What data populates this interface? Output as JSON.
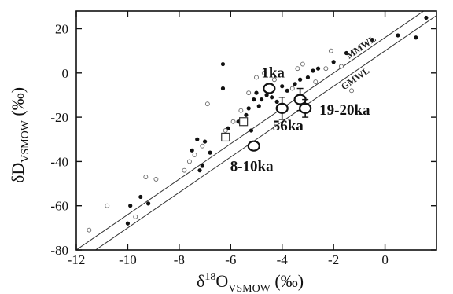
{
  "chart_data": {
    "type": "scatter",
    "xlim": [
      -12,
      2
    ],
    "ylim": [
      -80,
      28
    ],
    "x_ticks": [
      -12,
      -10,
      -8,
      -6,
      -4,
      -2,
      0
    ],
    "y_ticks": [
      -80,
      -60,
      -40,
      -20,
      0,
      20
    ],
    "xlabel": {
      "main": "δ",
      "sup": "18",
      "after": "O",
      "sub": "VSMOW",
      "unit": " (‰)"
    },
    "ylabel": {
      "main": "δD",
      "sub": "VSMOW",
      "unit": " (‰)"
    },
    "grid": false,
    "lines": [
      {
        "name": "MMWL",
        "slope": 8,
        "intercept": 16,
        "label": "MMWL"
      },
      {
        "name": "GMWL",
        "slope": 8,
        "intercept": 10,
        "label": "GMWL"
      }
    ],
    "series": [
      {
        "marker": "filled-dot",
        "points": [
          [
            -10,
            -68
          ],
          [
            -9.9,
            -60
          ],
          [
            -9.5,
            -56
          ],
          [
            -9.2,
            -59
          ],
          [
            -7.5,
            -35
          ],
          [
            -7.3,
            -30
          ],
          [
            -7.2,
            -44
          ],
          [
            -7.1,
            -42
          ],
          [
            -7.0,
            -31
          ],
          [
            -6.8,
            -36
          ],
          [
            -6.3,
            4
          ],
          [
            -6.3,
            -7
          ],
          [
            -6.1,
            -25
          ],
          [
            -5.7,
            -22
          ],
          [
            -5.5,
            -23
          ],
          [
            -5.4,
            -19
          ],
          [
            -5.3,
            -16
          ],
          [
            -5.2,
            -26
          ],
          [
            -5.1,
            -12
          ],
          [
            -5.0,
            -9
          ],
          [
            -4.9,
            -15
          ],
          [
            -4.8,
            -12
          ],
          [
            -4.6,
            -10
          ],
          [
            -4.4,
            -11
          ],
          [
            -4.2,
            -13
          ],
          [
            -4.0,
            -6
          ],
          [
            -3.8,
            -8
          ],
          [
            -3.5,
            -5
          ],
          [
            -3.3,
            -3
          ],
          [
            -3.0,
            -2
          ],
          [
            -2.8,
            1
          ],
          [
            -2.6,
            2
          ],
          [
            -2.0,
            5
          ],
          [
            -1.5,
            9
          ],
          [
            -0.5,
            15
          ],
          [
            0.5,
            17
          ],
          [
            1.2,
            16
          ],
          [
            1.6,
            25
          ]
        ]
      },
      {
        "marker": "open-dot",
        "points": [
          [
            -11.5,
            -71
          ],
          [
            -10.8,
            -60
          ],
          [
            -9.7,
            -65
          ],
          [
            -9.3,
            -47
          ],
          [
            -8.9,
            -48
          ],
          [
            -7.8,
            -44
          ],
          [
            -7.6,
            -40
          ],
          [
            -7.4,
            -37
          ],
          [
            -7.1,
            -33
          ],
          [
            -6.9,
            -14
          ],
          [
            -6.2,
            -26
          ],
          [
            -5.9,
            -22
          ],
          [
            -5.6,
            -17
          ],
          [
            -5.3,
            -9
          ],
          [
            -5.0,
            -2
          ],
          [
            -4.7,
            0
          ],
          [
            -4.3,
            -3
          ],
          [
            -3.6,
            -7
          ],
          [
            -3.4,
            2
          ],
          [
            -3.2,
            4
          ],
          [
            -2.7,
            -4
          ],
          [
            -2.3,
            2
          ],
          [
            -2.1,
            10
          ],
          [
            -1.7,
            3
          ],
          [
            -1.3,
            -8
          ]
        ]
      },
      {
        "marker": "open-square",
        "points": [
          [
            -6.2,
            -29
          ],
          [
            -5.5,
            -22
          ]
        ]
      },
      {
        "marker": "large-open-circle",
        "points": [
          {
            "x": -4.5,
            "y": -7,
            "label": "1ka"
          },
          {
            "x": -4.0,
            "y": -16,
            "label": "56ka",
            "yerr": 5
          },
          {
            "x": -3.3,
            "y": -12,
            "label": "",
            "yerr": 5
          },
          {
            "x": -3.1,
            "y": -16,
            "label": "19-20ka",
            "yerr": 4
          },
          {
            "x": -5.1,
            "y": -33,
            "label": "8-10ka"
          }
        ]
      }
    ]
  }
}
